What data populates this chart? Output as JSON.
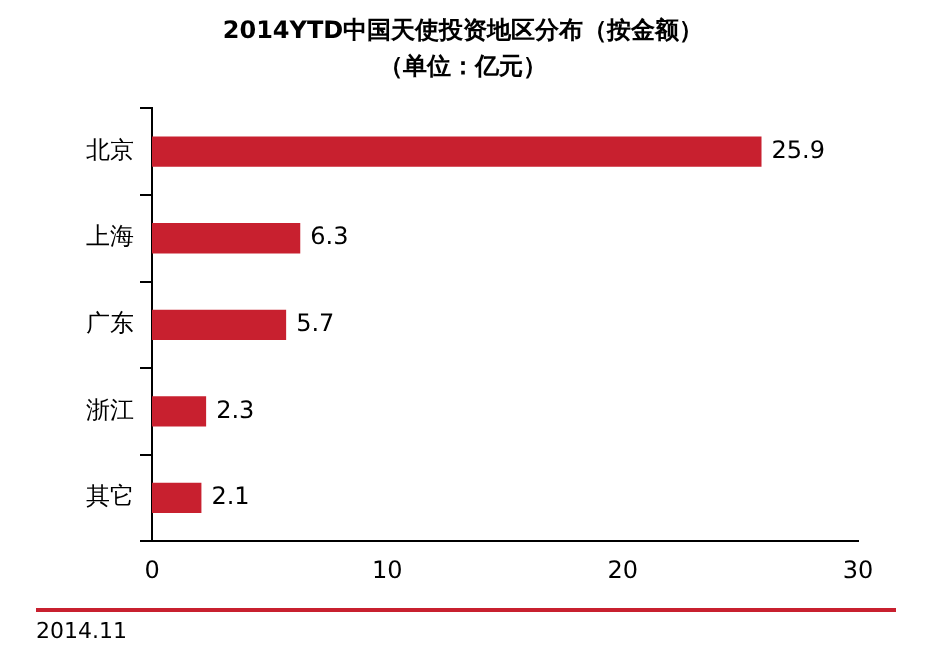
{
  "chart_data": {
    "type": "bar",
    "orientation": "horizontal",
    "title": "2014YTD中国天使投资地区分布（按金额）",
    "subtitle": "（单位：亿元）",
    "categories": [
      "北京",
      "上海",
      "广东",
      "浙江",
      "其它"
    ],
    "values": [
      25.9,
      6.3,
      5.7,
      2.3,
      2.1
    ],
    "color": "#c8202f",
    "xlim": [
      0,
      30
    ],
    "xticks": [
      0,
      10,
      20,
      30
    ],
    "grid": false,
    "legend": false,
    "data_labels": true,
    "annotations": [
      "2014.11"
    ]
  }
}
